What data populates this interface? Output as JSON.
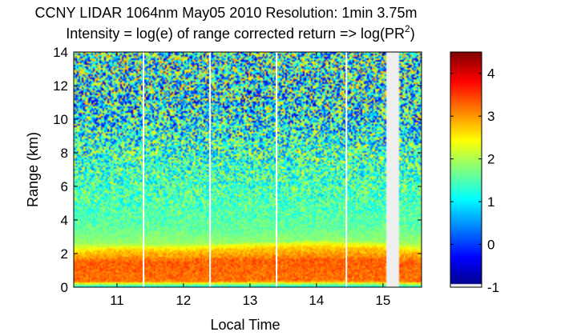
{
  "chart_data": {
    "type": "heatmap",
    "title": "CCNY LIDAR 1064nm May05 2010 Resolution: 1min 3.75m",
    "subtitle": {
      "prefix": "Intensity = log(e) of range corrected return => log(PR",
      "superscript": "2",
      "suffix": ")"
    },
    "xlabel": "Local Time",
    "ylabel": "Range (km)",
    "xlim": [
      10.35,
      15.58
    ],
    "ylim": [
      0,
      14
    ],
    "xticks": [
      11,
      12,
      13,
      14,
      15
    ],
    "yticks": [
      0,
      2,
      4,
      6,
      8,
      10,
      12,
      14
    ],
    "colorbar": {
      "range": [
        -1,
        4.5
      ],
      "ticks": [
        -1,
        0,
        1,
        2,
        3,
        4
      ],
      "colormap": "jet",
      "lowest_band_color": "#eeeeee"
    },
    "gaps": [
      11.4,
      12.4,
      13.4,
      14.45
    ],
    "missing_interval": [
      15.05,
      15.25
    ],
    "profile": [
      {
        "range_km": 0.0,
        "value": 1.0
      },
      {
        "range_km": 0.15,
        "value": 1.8
      },
      {
        "range_km": 0.35,
        "value": 3.2
      },
      {
        "range_km": 1.5,
        "value": 3.3
      },
      {
        "range_km": 1.8,
        "value": 3.0
      },
      {
        "range_km": 2.2,
        "value": 2.7
      },
      {
        "range_km": 2.6,
        "value": 1.9
      },
      {
        "range_km": 3.5,
        "value": 1.6
      },
      {
        "range_km": 4.5,
        "value": 1.5
      },
      {
        "range_km": 6.0,
        "value": 1.45
      },
      {
        "range_km": 8.0,
        "value": 1.35
      },
      {
        "range_km": 10.0,
        "value": 1.1
      },
      {
        "range_km": 12.0,
        "value": 1.2
      },
      {
        "range_km": 14.0,
        "value": 1.3
      }
    ],
    "boundary_layer_top_km": [
      {
        "time": 10.4,
        "value": 2.0
      },
      {
        "time": 11.0,
        "value": 2.1
      },
      {
        "time": 12.0,
        "value": 2.1
      },
      {
        "time": 13.0,
        "value": 2.2
      },
      {
        "time": 14.0,
        "value": 2.3
      },
      {
        "time": 15.0,
        "value": 2.2
      },
      {
        "time": 15.58,
        "value": 2.0
      }
    ]
  }
}
